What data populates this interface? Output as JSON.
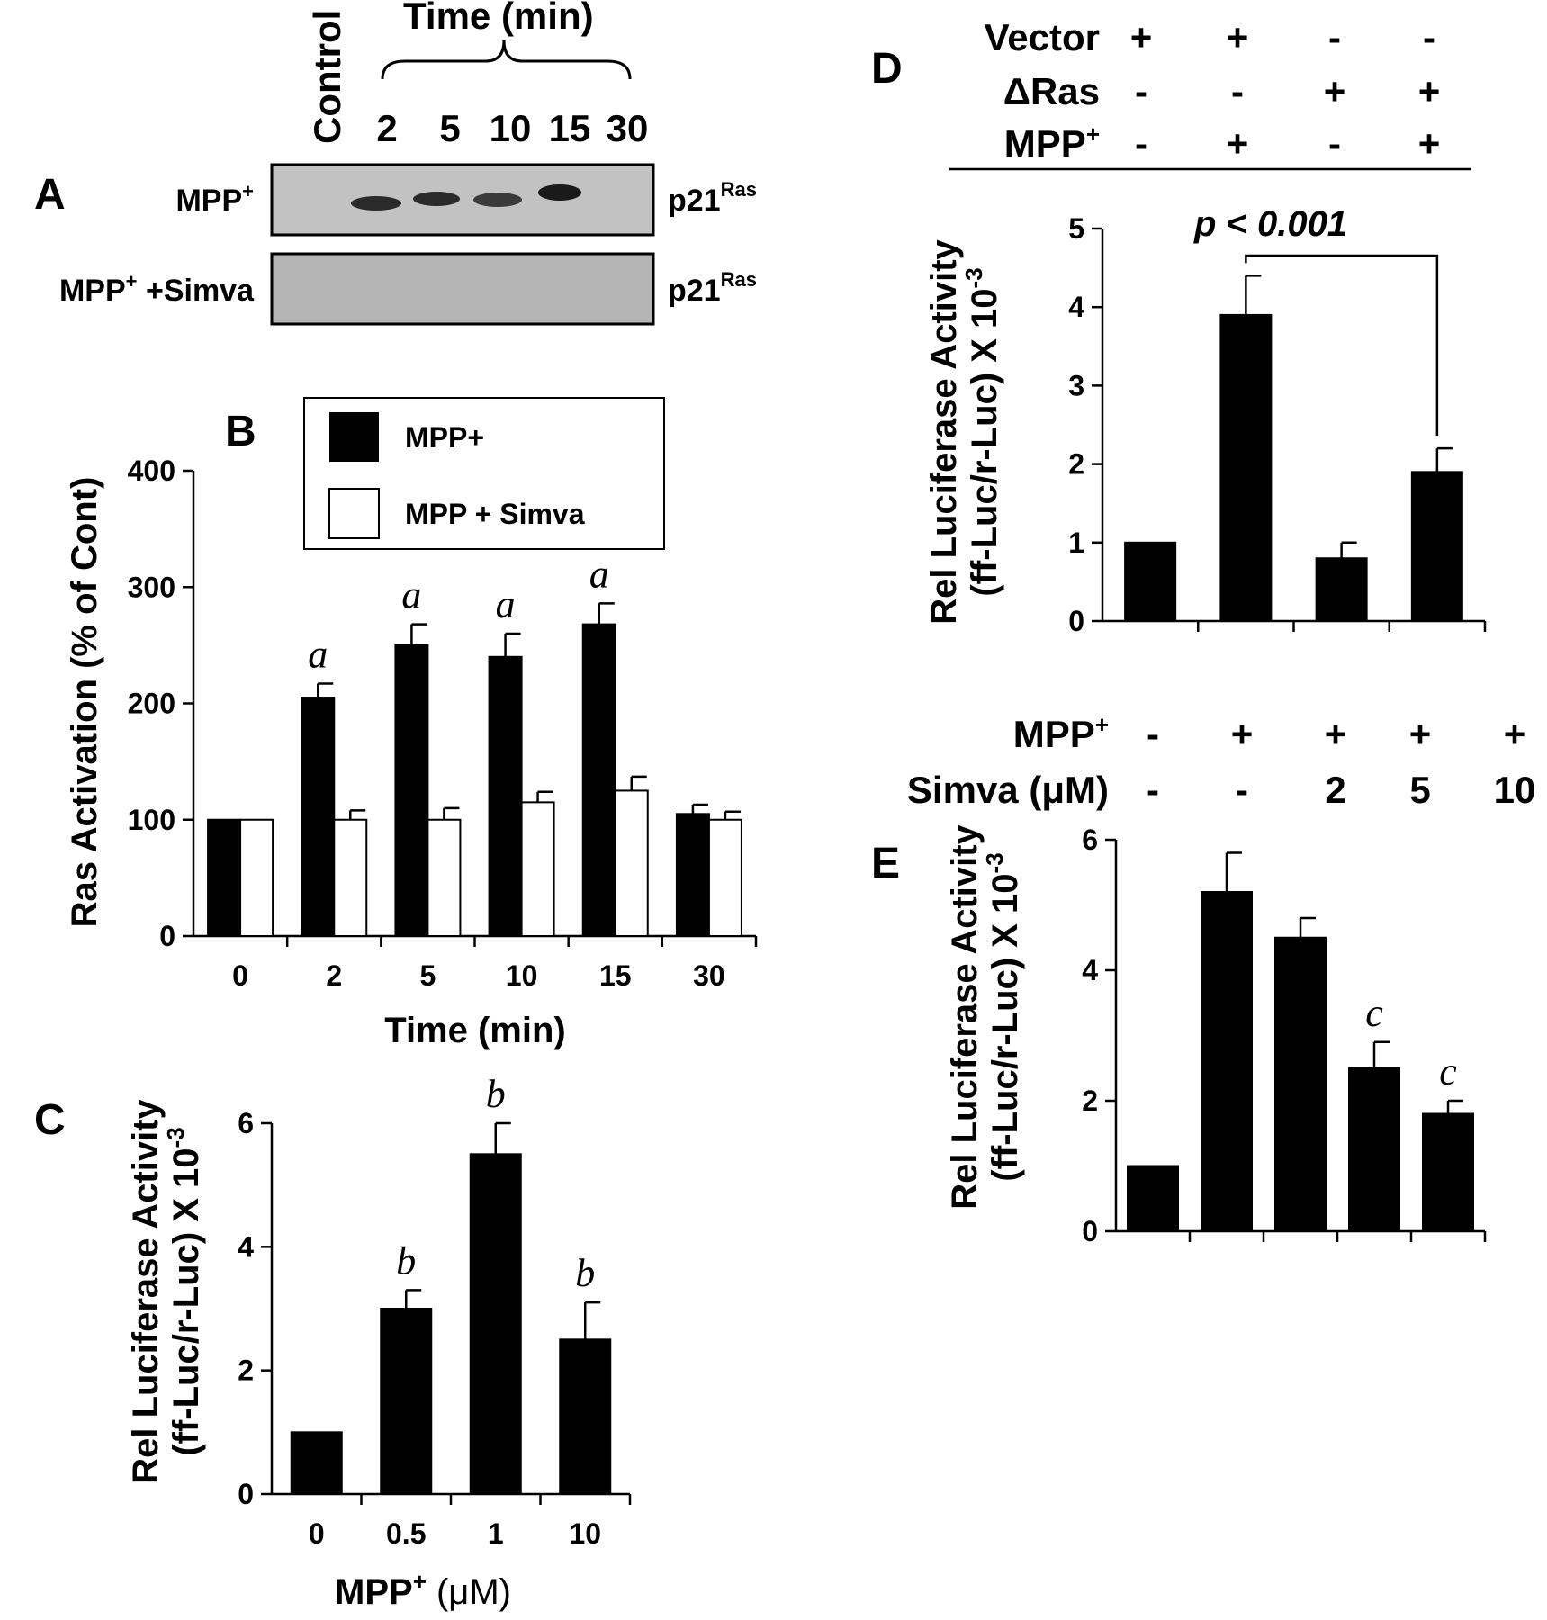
{
  "panelA": {
    "letter": "A",
    "control_label": "Control",
    "time_header": "Time (min)",
    "lanes": [
      "2",
      "5",
      "10",
      "15",
      "30"
    ],
    "rows": [
      {
        "label": "MPP",
        "sup": "+",
        "label_rest": "",
        "band_label": "p21",
        "band_sup": "Ras"
      },
      {
        "label": "MPP",
        "sup": "+",
        "label_rest": " +Simva",
        "band_label": "p21",
        "band_sup": "Ras"
      }
    ]
  },
  "panelB": {
    "letter": "B",
    "legend": [
      "MPP+",
      "MPP + Simva"
    ],
    "ylabel": "Ras Activation (% of Cont)",
    "xlabel": "Time (min)",
    "ticks": [
      "0",
      "100",
      "200",
      "300",
      "400"
    ]
  },
  "panelC": {
    "letter": "C",
    "ylabel_1": "Rel Luciferase Activity",
    "ylabel_2": "(ff-Luc/r-Luc) X 10",
    "ylabel_sup": "-3",
    "xlabel_main": "MPP",
    "xlabel_sup": "+",
    "xlabel_unit": " (μM)",
    "ticks": [
      "0",
      "2",
      "4",
      "6"
    ]
  },
  "panelD": {
    "letter": "D",
    "conditions": [
      {
        "label": "Vector",
        "sup": "",
        "values": [
          "+",
          "+",
          "-",
          "-"
        ]
      },
      {
        "label": "ΔRas",
        "sup": "",
        "values": [
          "-",
          "-",
          "+",
          "+"
        ]
      },
      {
        "label": "MPP",
        "sup": "+",
        "values": [
          "-",
          "+",
          "-",
          "+"
        ]
      }
    ],
    "ylabel_1": "Rel Luciferase Activity",
    "ylabel_2": "(ff-Luc/r-Luc) X 10",
    "ylabel_sup": "-3",
    "pvalue": "p < 0.001",
    "ticks": [
      "0",
      "1",
      "2",
      "3",
      "4",
      "5"
    ]
  },
  "panelE": {
    "letter": "E",
    "conditions": [
      {
        "label": "MPP",
        "sup": "+",
        "values": [
          "-",
          "+",
          "+",
          "+",
          "+"
        ]
      },
      {
        "label": "Simva (μM)",
        "sup": "",
        "values": [
          "-",
          "-",
          "2",
          "5",
          "10"
        ]
      }
    ],
    "ylabel_1": "Rel Luciferase Activity",
    "ylabel_2": "(ff-Luc/r-Luc) X 10",
    "ylabel_sup": "-3",
    "ticks": [
      "0",
      "2",
      "4",
      "6"
    ]
  },
  "chart_data": [
    {
      "panel": "B",
      "type": "bar",
      "categories": [
        "0",
        "2",
        "5",
        "10",
        "15",
        "30"
      ],
      "series": [
        {
          "name": "MPP+",
          "values": [
            100,
            205,
            250,
            240,
            268,
            105
          ],
          "errors": [
            0,
            12,
            18,
            20,
            18,
            8
          ],
          "color": "#000000"
        },
        {
          "name": "MPP + Simva",
          "values": [
            100,
            100,
            100,
            115,
            125,
            100
          ],
          "errors": [
            0,
            8,
            10,
            9,
            12,
            7
          ],
          "color": "#ffffff"
        }
      ],
      "annotations": [
        "",
        "a",
        "a",
        "a",
        "a",
        ""
      ],
      "ylim": [
        0,
        400
      ]
    },
    {
      "panel": "C",
      "type": "bar",
      "categories": [
        "0",
        "0.5",
        "1",
        "10"
      ],
      "values": [
        1.0,
        3.0,
        5.5,
        2.5
      ],
      "errors": [
        0,
        0.3,
        0.5,
        0.6
      ],
      "annotations": [
        "",
        "b",
        "b",
        "b"
      ],
      "ylim": [
        0,
        6
      ]
    },
    {
      "panel": "D",
      "type": "bar",
      "categories": [
        "",
        "",
        "",
        ""
      ],
      "values": [
        1.0,
        3.9,
        0.8,
        1.9
      ],
      "errors": [
        0,
        0.5,
        0.2,
        0.3
      ],
      "ylim": [
        0,
        5
      ]
    },
    {
      "panel": "E",
      "type": "bar",
      "categories": [
        "",
        "",
        "",
        "",
        ""
      ],
      "values": [
        1.0,
        5.2,
        4.5,
        2.5,
        1.8
      ],
      "errors": [
        0,
        0.6,
        0.3,
        0.4,
        0.2
      ],
      "annotations": [
        "",
        "",
        "",
        "c",
        "c"
      ],
      "ylim": [
        0,
        6
      ]
    }
  ]
}
